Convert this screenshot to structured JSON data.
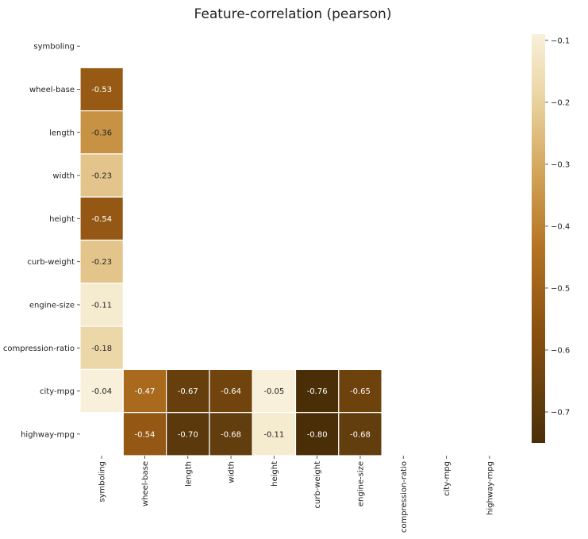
{
  "chart_data": {
    "type": "heatmap",
    "title": "Feature-correlation (pearson)",
    "labels": [
      "symboling",
      "wheel-base",
      "length",
      "width",
      "height",
      "curb-weight",
      "engine-size",
      "compression-ratio",
      "city-mpg",
      "highway-mpg"
    ],
    "cells": [
      {
        "row": 1,
        "col": 0,
        "value": -0.53,
        "text": "-0.53"
      },
      {
        "row": 2,
        "col": 0,
        "value": -0.36,
        "text": "-0.36"
      },
      {
        "row": 3,
        "col": 0,
        "value": -0.23,
        "text": "-0.23"
      },
      {
        "row": 4,
        "col": 0,
        "value": -0.54,
        "text": "-0.54"
      },
      {
        "row": 5,
        "col": 0,
        "value": -0.23,
        "text": "-0.23"
      },
      {
        "row": 6,
        "col": 0,
        "value": -0.11,
        "text": "-0.11"
      },
      {
        "row": 7,
        "col": 0,
        "value": -0.18,
        "text": "-0.18"
      },
      {
        "row": 8,
        "col": 0,
        "value": -0.04,
        "text": "-0.04"
      },
      {
        "row": 8,
        "col": 1,
        "value": -0.47,
        "text": "-0.47"
      },
      {
        "row": 8,
        "col": 2,
        "value": -0.67,
        "text": "-0.67"
      },
      {
        "row": 8,
        "col": 3,
        "value": -0.64,
        "text": "-0.64"
      },
      {
        "row": 8,
        "col": 4,
        "value": -0.05,
        "text": "-0.05"
      },
      {
        "row": 8,
        "col": 5,
        "value": -0.76,
        "text": "-0.76"
      },
      {
        "row": 8,
        "col": 6,
        "value": -0.65,
        "text": "-0.65"
      },
      {
        "row": 9,
        "col": 1,
        "value": -0.54,
        "text": "-0.54"
      },
      {
        "row": 9,
        "col": 2,
        "value": -0.7,
        "text": "-0.70"
      },
      {
        "row": 9,
        "col": 3,
        "value": -0.68,
        "text": "-0.68"
      },
      {
        "row": 9,
        "col": 4,
        "value": -0.11,
        "text": "-0.11"
      },
      {
        "row": 9,
        "col": 5,
        "value": -0.8,
        "text": "-0.80"
      },
      {
        "row": 9,
        "col": 6,
        "value": -0.68,
        "text": "-0.68"
      }
    ],
    "colorbar": {
      "vmin": -0.75,
      "vmax": -0.09,
      "ticks": [
        -0.1,
        -0.2,
        -0.3,
        -0.4,
        -0.5,
        -0.6,
        -0.7
      ],
      "colors": [
        "#f8f0da",
        "#ead3a0",
        "#d2a458",
        "#b57424",
        "#8c5110",
        "#5c3a0c",
        "#4a2e08"
      ]
    },
    "cell_border_color": "#ffffff",
    "mask": "upper-triangle-and-near-zero"
  }
}
